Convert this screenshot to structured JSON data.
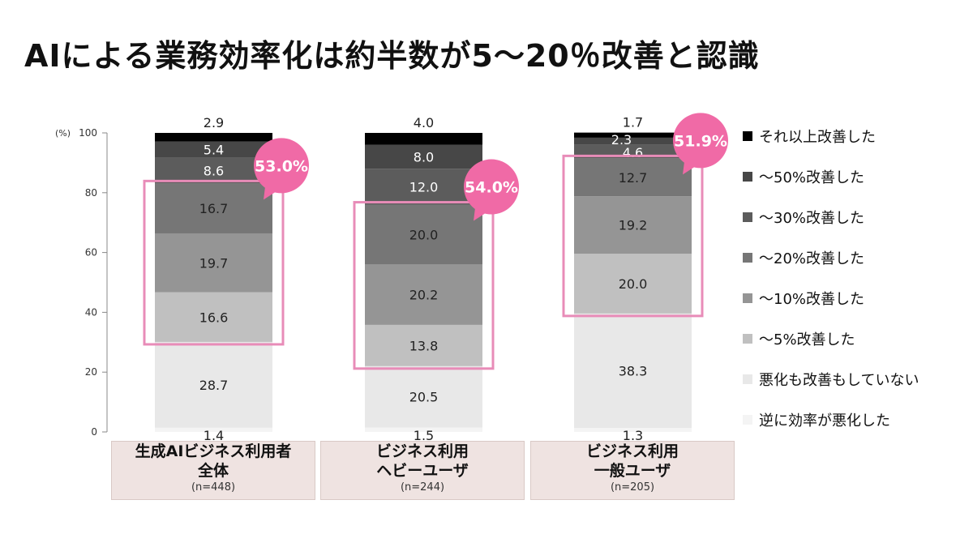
{
  "title": "AIによる業務効率化は約半数が5～20％改善と認識",
  "chart_data": {
    "type": "bar",
    "stacked": true,
    "title": "AIによる業務効率化は約半数が5～20％改善と認識",
    "ylabel": "(%)",
    "ylim": [
      0,
      100
    ],
    "yticks": [
      0,
      20,
      40,
      60,
      80,
      100
    ],
    "ytick_labels": [
      "0",
      "20",
      "40",
      "60",
      "80",
      "100"
    ],
    "legend_position": "right",
    "categories": [
      {
        "lines": [
          "生成AIビジネス利用者",
          "全体"
        ],
        "n": "(n=448)"
      },
      {
        "lines": [
          "ビジネス利用",
          "ヘビーユーザ"
        ],
        "n": "(n=244)"
      },
      {
        "lines": [
          "ビジネス利用",
          "一般ユーザ"
        ],
        "n": "(n=205)"
      }
    ],
    "series": [
      {
        "name": "逆に効率が悪化した",
        "color": "#f4f4f4",
        "label_color": "#222222",
        "values": [
          1.4,
          1.5,
          1.3
        ]
      },
      {
        "name": "悪化も改善もしていない",
        "color": "#e8e8e8",
        "label_color": "#222222",
        "values": [
          28.7,
          20.5,
          38.3
        ]
      },
      {
        "name": "～5%改善した",
        "color": "#c0c0c0",
        "label_color": "#222222",
        "values": [
          16.6,
          13.8,
          20.0
        ]
      },
      {
        "name": "～10%改善した",
        "color": "#959595",
        "label_color": "#222222",
        "values": [
          19.7,
          20.2,
          19.2
        ]
      },
      {
        "name": "～20%改善した",
        "color": "#767676",
        "label_color": "#222222",
        "values": [
          16.7,
          20.0,
          12.7
        ]
      },
      {
        "name": "～30%改善した",
        "color": "#5c5c5c",
        "label_color": "#ffffff",
        "values": [
          8.6,
          12.0,
          4.6
        ]
      },
      {
        "name": "～50%改善した",
        "color": "#474747",
        "label_color": "#ffffff",
        "values": [
          5.4,
          8.0,
          2.3
        ]
      },
      {
        "name": "それ以上改善した",
        "color": "#000000",
        "label_color": "#222222",
        "values": [
          2.9,
          4.0,
          1.7
        ]
      }
    ],
    "legend_order": [
      "それ以上改善した",
      "～50%改善した",
      "～30%改善した",
      "～20%改善した",
      "～10%改善した",
      "～5%改善した",
      "悪化も改善もしていない",
      "逆に効率が悪化した"
    ],
    "annotations": [
      {
        "text": "53.0%",
        "category_index": 0,
        "covers_series": [
          "～5%改善した",
          "～10%改善した",
          "～20%改善した"
        ]
      },
      {
        "text": "54.0%",
        "category_index": 1,
        "covers_series": [
          "～5%改善した",
          "～10%改善した",
          "～20%改善した"
        ]
      },
      {
        "text": "51.9%",
        "category_index": 2,
        "covers_series": [
          "～5%改善した",
          "～10%改善した",
          "～20%改善した"
        ]
      }
    ],
    "highlight_color": "#e88cb8",
    "bubble_color": "#f06aa6"
  }
}
